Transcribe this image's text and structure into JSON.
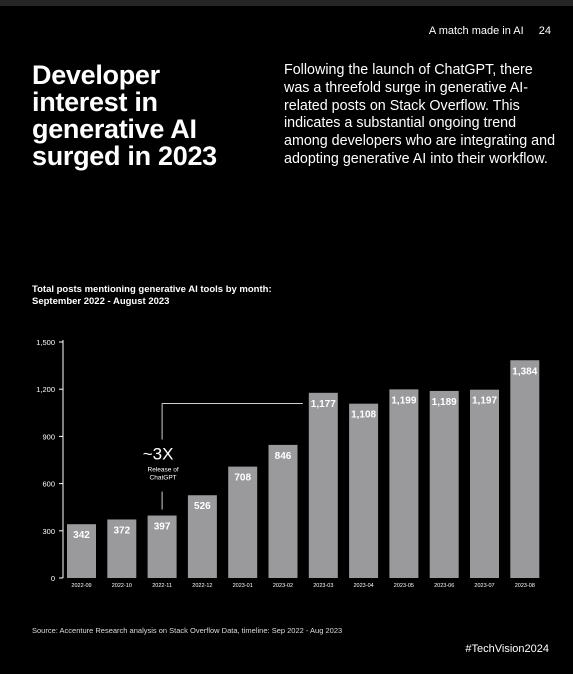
{
  "header": {
    "section": "A match made in AI",
    "page": "24"
  },
  "headline": "Developer interest in generative AI surged in 2023",
  "intro": "Following the launch of ChatGPT, there was a threefold surge in generative AI-related posts on Stack Overflow. This indicates a substantial ongoing trend among developers who are integrating and adopting generative AI into their workflow.",
  "chart_data": {
    "type": "bar",
    "title": "Total posts mentioning generative AI tools by month: September 2022 - August 2023",
    "categories": [
      "2022-09",
      "2022-10",
      "2022-11",
      "2022-12",
      "2023-01",
      "2023-02",
      "2023-03",
      "2023-04",
      "2023-05",
      "2023-06",
      "2023-07",
      "2023-08"
    ],
    "values": [
      342,
      372,
      397,
      526,
      708,
      846,
      1177,
      1108,
      1199,
      1189,
      1197,
      1384
    ],
    "value_labels": [
      "342",
      "372",
      "397",
      "526",
      "708",
      "846",
      "1,177",
      "1,108",
      "1,199",
      "1,189",
      "1,197",
      "1,384"
    ],
    "ylim": [
      0,
      1500
    ],
    "yticks": [
      0,
      300,
      600,
      900,
      1200,
      1500
    ],
    "ytick_labels": [
      "0",
      "300",
      "600",
      "900",
      "1,200",
      "1,500"
    ],
    "grid": false,
    "annotation": {
      "text": "~3X",
      "subtext": "Release of ChatGPT",
      "from_category": "2022-11",
      "to_category": "2023-03"
    },
    "colors": {
      "bar": "#9a9a9d",
      "text": "#ffffff",
      "axis": "#ffffff"
    }
  },
  "source": "Source: Accenture Research analysis on Stack Overflow Data, timeline: Sep 2022 - Aug 2023",
  "hashtag": "#TechVision2024"
}
